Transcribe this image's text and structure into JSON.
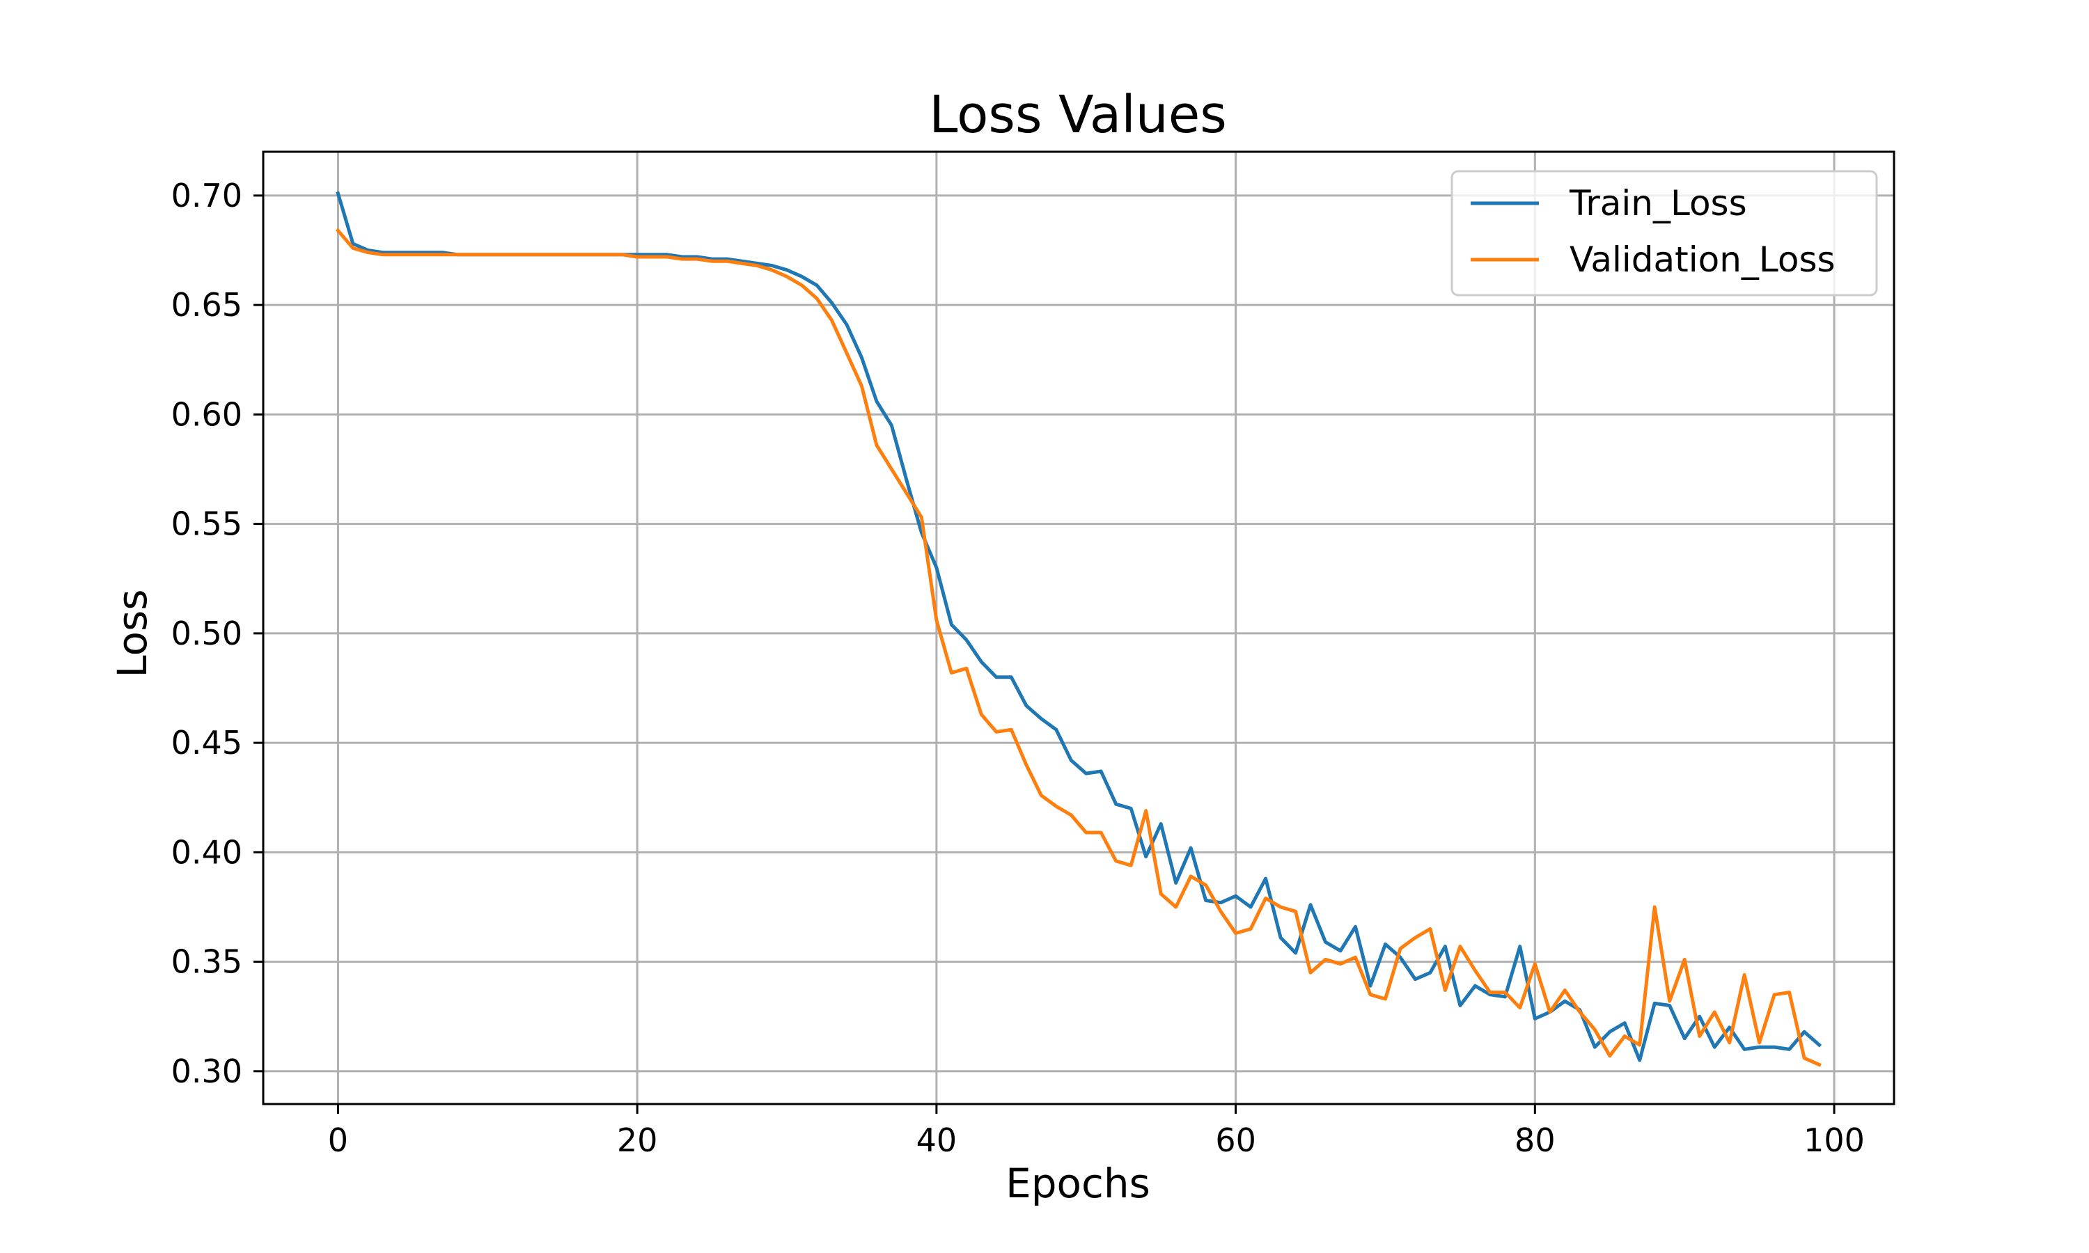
{
  "chart_data": {
    "type": "line",
    "title": "Loss Values",
    "xlabel": "Epochs",
    "ylabel": "Loss",
    "xlim": [
      -5,
      104
    ],
    "ylim": [
      0.285,
      0.72
    ],
    "xticks": [
      0,
      20,
      40,
      60,
      80,
      100
    ],
    "yticks": [
      0.3,
      0.35,
      0.4,
      0.45,
      0.5,
      0.55,
      0.6,
      0.65,
      0.7
    ],
    "grid": true,
    "legend_position": "top-right",
    "series": [
      {
        "name": "Train_Loss",
        "color": "#1f77b4",
        "values": [
          0.701,
          0.678,
          0.675,
          0.674,
          0.674,
          0.674,
          0.674,
          0.674,
          0.673,
          0.673,
          0.673,
          0.673,
          0.673,
          0.673,
          0.673,
          0.673,
          0.673,
          0.673,
          0.673,
          0.673,
          0.673,
          0.673,
          0.673,
          0.672,
          0.672,
          0.671,
          0.671,
          0.67,
          0.669,
          0.668,
          0.666,
          0.663,
          0.659,
          0.651,
          0.641,
          0.626,
          0.606,
          0.595,
          0.57,
          0.546,
          0.53,
          0.504,
          0.497,
          0.487,
          0.48,
          0.48,
          0.467,
          0.461,
          0.456,
          0.442,
          0.436,
          0.437,
          0.422,
          0.42,
          0.398,
          0.413,
          0.386,
          0.402,
          0.378,
          0.377,
          0.38,
          0.375,
          0.388,
          0.361,
          0.354,
          0.376,
          0.359,
          0.355,
          0.366,
          0.339,
          0.358,
          0.352,
          0.342,
          0.345,
          0.357,
          0.33,
          0.339,
          0.335,
          0.334,
          0.357,
          0.324,
          0.327,
          0.332,
          0.328,
          0.311,
          0.318,
          0.322,
          0.305,
          0.331,
          0.33,
          0.315,
          0.325,
          0.311,
          0.32,
          0.31,
          0.311,
          0.311,
          0.31,
          0.318,
          0.312
        ]
      },
      {
        "name": "Validation_Loss",
        "color": "#ff7f0e",
        "values": [
          0.684,
          0.676,
          0.674,
          0.673,
          0.673,
          0.673,
          0.673,
          0.673,
          0.673,
          0.673,
          0.673,
          0.673,
          0.673,
          0.673,
          0.673,
          0.673,
          0.673,
          0.673,
          0.673,
          0.673,
          0.672,
          0.672,
          0.672,
          0.671,
          0.671,
          0.67,
          0.67,
          0.669,
          0.668,
          0.666,
          0.663,
          0.659,
          0.653,
          0.643,
          0.628,
          0.613,
          0.586,
          0.575,
          0.564,
          0.553,
          0.506,
          0.482,
          0.484,
          0.463,
          0.455,
          0.456,
          0.44,
          0.426,
          0.421,
          0.417,
          0.409,
          0.409,
          0.396,
          0.394,
          0.419,
          0.381,
          0.375,
          0.389,
          0.385,
          0.373,
          0.363,
          0.365,
          0.379,
          0.375,
          0.373,
          0.345,
          0.351,
          0.349,
          0.352,
          0.335,
          0.333,
          0.356,
          0.361,
          0.365,
          0.337,
          0.357,
          0.346,
          0.336,
          0.336,
          0.329,
          0.349,
          0.327,
          0.337,
          0.327,
          0.319,
          0.307,
          0.316,
          0.312,
          0.375,
          0.332,
          0.351,
          0.316,
          0.327,
          0.313,
          0.344,
          0.313,
          0.335,
          0.336,
          0.306,
          0.303
        ]
      }
    ]
  }
}
